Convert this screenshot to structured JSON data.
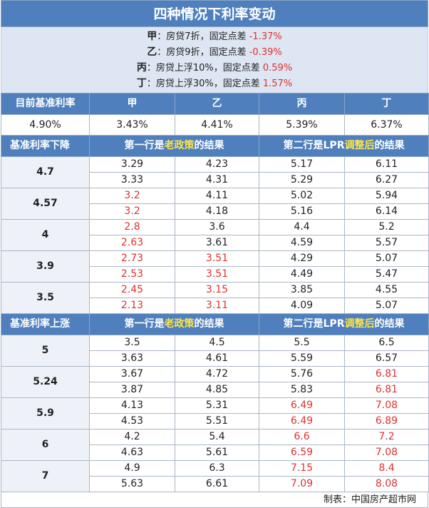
{
  "title": "四种情况下利率变动",
  "scenarios": [
    {
      "name": "甲",
      "desc": "房贷7折，固定点差",
      "value": "-1.37%"
    },
    {
      "name": "乙",
      "desc": "房贷9折，固定点差",
      "value": "-0.39%"
    },
    {
      "name": "丙",
      "desc": "房贷上浮10%，固定点差",
      "value": "0.59%"
    },
    {
      "name": "丁",
      "desc": "房贷上浮30%，固定点差",
      "value": "1.57%"
    }
  ],
  "current": {
    "label": "目前基准利率",
    "columns": [
      "甲",
      "乙",
      "丙",
      "丁"
    ],
    "base": "4.90%",
    "values": [
      "3.43%",
      "4.41%",
      "5.39%",
      "6.37%"
    ]
  },
  "sections": [
    {
      "title": "基准利率下降",
      "note_a": "第一行是",
      "note_a_hl": "老政策",
      "note_a_end": "的结果",
      "note_b": "第二行是LPR",
      "note_b_hl": "调整后",
      "note_b_end": "的结果",
      "groups": [
        {
          "label": "4.7",
          "rows": [
            {
              "values": [
                "3.29",
                "4.23",
                "5.17",
                "6.11"
              ],
              "red": [
                false,
                false,
                false,
                false
              ]
            },
            {
              "values": [
                "3.33",
                "4.31",
                "5.29",
                "6.27"
              ],
              "red": [
                false,
                false,
                false,
                false
              ]
            }
          ]
        },
        {
          "label": "4.57",
          "rows": [
            {
              "values": [
                "3.2",
                "4.11",
                "5.02",
                "5.94"
              ],
              "red": [
                true,
                false,
                false,
                false
              ]
            },
            {
              "values": [
                "3.2",
                "4.18",
                "5.16",
                "6.14"
              ],
              "red": [
                true,
                false,
                false,
                false
              ]
            }
          ]
        },
        {
          "label": "4",
          "rows": [
            {
              "values": [
                "2.8",
                "3.6",
                "4.4",
                "5.2"
              ],
              "red": [
                true,
                false,
                false,
                false
              ]
            },
            {
              "values": [
                "2.63",
                "3.61",
                "4.59",
                "5.57"
              ],
              "red": [
                true,
                false,
                false,
                false
              ]
            }
          ]
        },
        {
          "label": "3.9",
          "rows": [
            {
              "values": [
                "2.73",
                "3.51",
                "4.29",
                "5.07"
              ],
              "red": [
                true,
                true,
                false,
                false
              ]
            },
            {
              "values": [
                "2.53",
                "3.51",
                "4.49",
                "5.47"
              ],
              "red": [
                true,
                true,
                false,
                false
              ]
            }
          ]
        },
        {
          "label": "3.5",
          "rows": [
            {
              "values": [
                "2.45",
                "3.15",
                "3.85",
                "4.55"
              ],
              "red": [
                true,
                true,
                false,
                false
              ]
            },
            {
              "values": [
                "2.13",
                "3.11",
                "4.09",
                "5.07"
              ],
              "red": [
                true,
                true,
                false,
                false
              ]
            }
          ]
        }
      ]
    },
    {
      "title": "基准利率上涨",
      "note_a": "第一行是",
      "note_a_hl": "老政策",
      "note_a_end": "的结果",
      "note_b": "第二行是LPR",
      "note_b_hl": "调整后",
      "note_b_end": "的结果",
      "groups": [
        {
          "label": "5",
          "rows": [
            {
              "values": [
                "3.5",
                "4.5",
                "5.5",
                "6.5"
              ],
              "red": [
                false,
                false,
                false,
                false
              ]
            },
            {
              "values": [
                "3.63",
                "4.61",
                "5.59",
                "6.57"
              ],
              "red": [
                false,
                false,
                false,
                false
              ]
            }
          ]
        },
        {
          "label": "5.24",
          "rows": [
            {
              "values": [
                "3.67",
                "4.72",
                "5.76",
                "6.81"
              ],
              "red": [
                false,
                false,
                false,
                true
              ]
            },
            {
              "values": [
                "3.87",
                "4.85",
                "5.83",
                "6.81"
              ],
              "red": [
                false,
                false,
                false,
                true
              ]
            }
          ]
        },
        {
          "label": "5.9",
          "rows": [
            {
              "values": [
                "4.13",
                "5.31",
                "6.49",
                "7.08"
              ],
              "red": [
                false,
                false,
                true,
                true
              ]
            },
            {
              "values": [
                "4.53",
                "5.51",
                "6.49",
                "6.89"
              ],
              "red": [
                false,
                false,
                true,
                true
              ]
            }
          ]
        },
        {
          "label": "6",
          "rows": [
            {
              "values": [
                "4.2",
                "5.4",
                "6.6",
                "7.2"
              ],
              "red": [
                false,
                false,
                true,
                true
              ]
            },
            {
              "values": [
                "4.63",
                "5.61",
                "6.59",
                "7.08"
              ],
              "red": [
                false,
                false,
                true,
                true
              ]
            }
          ]
        },
        {
          "label": "7",
          "rows": [
            {
              "values": [
                "4.9",
                "6.3",
                "7.15",
                "8.4"
              ],
              "red": [
                false,
                false,
                true,
                true
              ]
            },
            {
              "values": [
                "5.63",
                "6.61",
                "7.09",
                "8.08"
              ],
              "red": [
                false,
                false,
                true,
                true
              ]
            }
          ]
        }
      ]
    }
  ],
  "footer": "制表：中国房产超市网",
  "colors": {
    "header_blue": "#4f80bd",
    "info_bg": "#dde6f2",
    "red": "#e03030",
    "highlight_yellow": "#ffe34a"
  }
}
